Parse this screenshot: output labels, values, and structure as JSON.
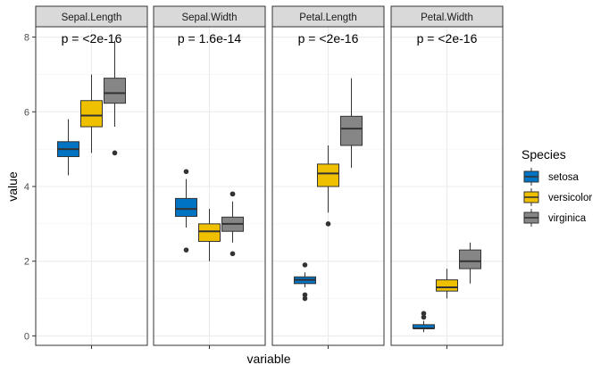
{
  "chart_data": {
    "type": "boxplot",
    "facet_by": "variable",
    "xlabel": "variable",
    "ylabel": "value",
    "ylim": [
      0,
      8
    ],
    "yticks": [
      0,
      2,
      4,
      6,
      8
    ],
    "grid": true,
    "legend": {
      "title": "Species",
      "position": "right",
      "items": [
        {
          "name": "setosa",
          "color": "#0073C2"
        },
        {
          "name": "versicolor",
          "color": "#EFC000"
        },
        {
          "name": "virginica",
          "color": "#868686"
        }
      ]
    },
    "facets": [
      {
        "name": "Sepal.Length",
        "annotation": "p = <2e-16",
        "boxes": [
          {
            "species": "setosa",
            "min": 4.3,
            "q1": 4.8,
            "median": 5.0,
            "q3": 5.2,
            "max": 5.8,
            "outliers": []
          },
          {
            "species": "versicolor",
            "min": 4.9,
            "q1": 5.6,
            "median": 5.9,
            "q3": 6.3,
            "max": 7.0,
            "outliers": []
          },
          {
            "species": "virginica",
            "min": 5.6,
            "q1": 6.23,
            "median": 6.5,
            "q3": 6.9,
            "max": 7.9,
            "outliers": [
              4.9
            ]
          }
        ]
      },
      {
        "name": "Sepal.Width",
        "annotation": "p = 1.6e-14",
        "boxes": [
          {
            "species": "setosa",
            "min": 2.9,
            "q1": 3.2,
            "median": 3.4,
            "q3": 3.68,
            "max": 4.2,
            "outliers": [
              4.4,
              2.3
            ]
          },
          {
            "species": "versicolor",
            "min": 2.0,
            "q1": 2.53,
            "median": 2.8,
            "q3": 3.0,
            "max": 3.4,
            "outliers": []
          },
          {
            "species": "virginica",
            "min": 2.5,
            "q1": 2.8,
            "median": 3.0,
            "q3": 3.18,
            "max": 3.6,
            "outliers": [
              3.8,
              3.8,
              2.2
            ]
          }
        ]
      },
      {
        "name": "Petal.Length",
        "annotation": "p = <2e-16",
        "boxes": [
          {
            "species": "setosa",
            "min": 1.3,
            "q1": 1.4,
            "median": 1.5,
            "q3": 1.58,
            "max": 1.7,
            "outliers": [
              1.9,
              1.1,
              1.0
            ]
          },
          {
            "species": "versicolor",
            "min": 3.3,
            "q1": 4.0,
            "median": 4.35,
            "q3": 4.6,
            "max": 5.1,
            "outliers": [
              3.0
            ]
          },
          {
            "species": "virginica",
            "min": 4.5,
            "q1": 5.1,
            "median": 5.55,
            "q3": 5.88,
            "max": 6.9,
            "outliers": []
          }
        ]
      },
      {
        "name": "Petal.Width",
        "annotation": "p = <2e-16",
        "boxes": [
          {
            "species": "setosa",
            "min": 0.1,
            "q1": 0.2,
            "median": 0.2,
            "q3": 0.3,
            "max": 0.4,
            "outliers": [
              0.5,
              0.6
            ]
          },
          {
            "species": "versicolor",
            "min": 1.0,
            "q1": 1.2,
            "median": 1.3,
            "q3": 1.5,
            "max": 1.8,
            "outliers": []
          },
          {
            "species": "virginica",
            "min": 1.4,
            "q1": 1.8,
            "median": 2.0,
            "q3": 2.3,
            "max": 2.5,
            "outliers": []
          }
        ]
      }
    ]
  }
}
